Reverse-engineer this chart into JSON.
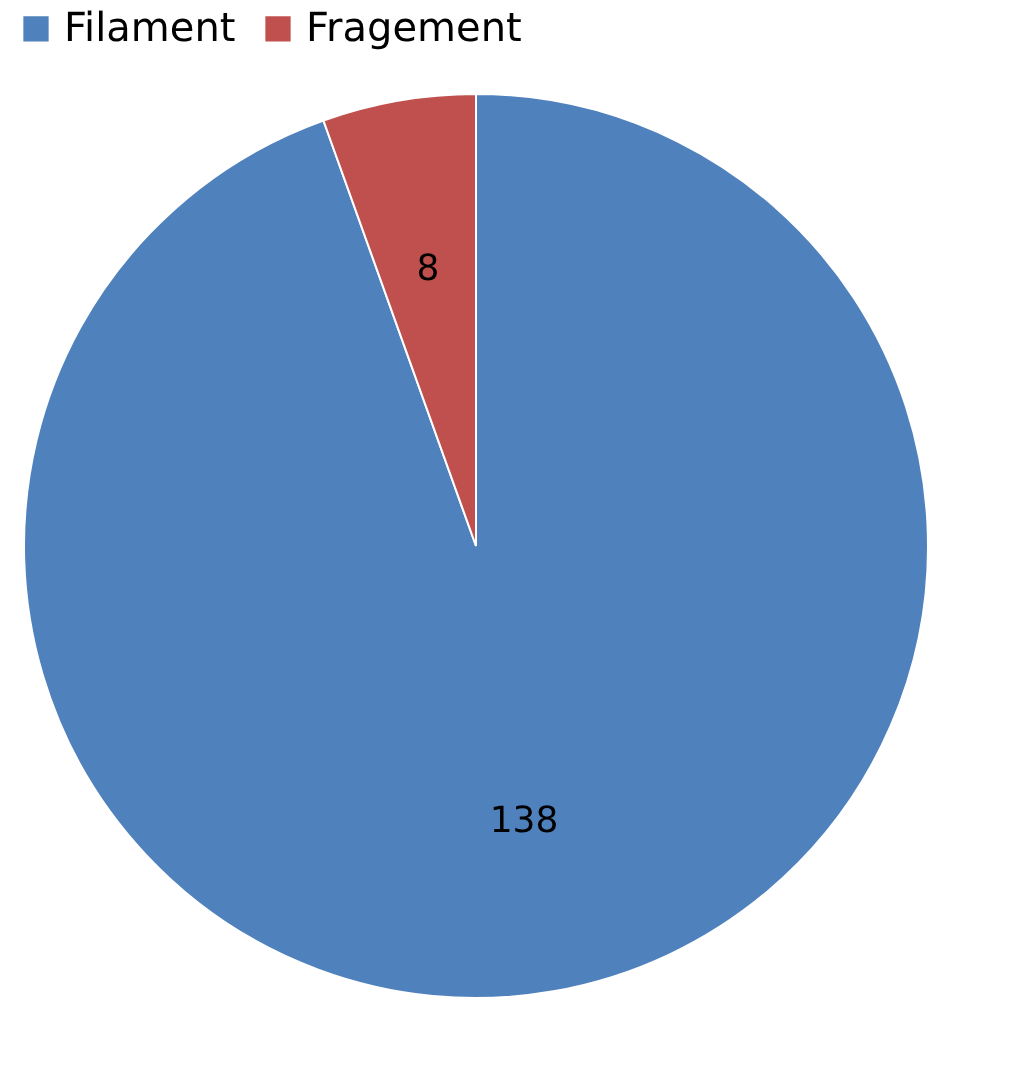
{
  "chart_data": {
    "type": "pie",
    "categories": [
      "Filament",
      "Fragement"
    ],
    "values": [
      138,
      8
    ],
    "colors": [
      "#4f81bd",
      "#c0504d"
    ],
    "data_labels": true,
    "legend": "top"
  }
}
